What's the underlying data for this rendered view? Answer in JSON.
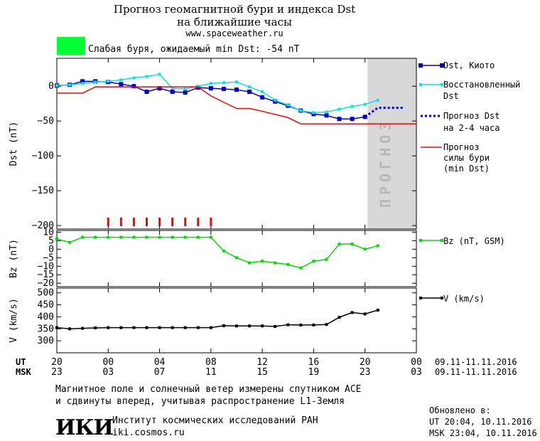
{
  "header": {
    "title_line1": "Прогноз геомагнитной бури и индекса Dst",
    "title_line2": "на ближайшие часы",
    "site": "www.spaceweather.ru",
    "status_color": "#00ff33",
    "status_text": "Слабая буря, ожидаемый min Dst: -54 nT"
  },
  "legend": {
    "dst_kyoto": "Dst, Киото",
    "restored_1": "Восстановленный",
    "restored_2": "Dst",
    "forecast_dst_1": "Прогноз Dst",
    "forecast_dst_2": "на 2-4 часа",
    "forecast_storm_1": "Прогноз",
    "forecast_storm_2": "силы бури",
    "forecast_storm_3": "(min Dst)",
    "bz": "Bz (nT, GSM)",
    "v": "V (km/s)"
  },
  "forecast_band_label": "ПРОГНОЗ",
  "time_axis": {
    "ut_label": "UT",
    "msk_label": "MSK",
    "ut_ticks": [
      "20",
      "00",
      "04",
      "08",
      "12",
      "16",
      "20",
      "00"
    ],
    "msk_ticks": [
      "23",
      "03",
      "07",
      "11",
      "15",
      "19",
      "23",
      "03"
    ],
    "ut_range": "09.11-11.11.2016",
    "msk_range": "09.11-11.11.2016"
  },
  "footer": {
    "note_line1": "Магнитное поле и солнечный ветер измерены спутником ACE",
    "note_line2": "и сдвинуты вперед, учитывая распространение L1-Земля",
    "institute": "Институт космических исследований РАН",
    "institute_url": "iki.cosmos.ru",
    "logo_text": "ИКИ",
    "updated_label": "Обновлено в:",
    "updated_ut": "UT  20:04, 10.11.2016",
    "updated_msk": "MSK 23:04, 10.11.2016"
  },
  "chart_data": [
    {
      "type": "line",
      "panel": "dst",
      "ylabel": "Dst (nT)",
      "ylim": [
        -205,
        40
      ],
      "yticks": [
        0,
        -50,
        -100,
        -150,
        -200
      ],
      "xlim": [
        0,
        28
      ],
      "forecast_start_hour": 24.2,
      "series": [
        {
          "name": "Dst, Киото",
          "color": "#0000cc",
          "x": [
            0,
            1,
            2,
            3,
            4,
            5,
            6,
            7,
            8,
            9,
            10,
            11,
            12,
            13,
            14,
            15,
            16,
            17,
            18,
            19,
            20,
            21,
            22,
            23,
            24
          ],
          "y": [
            1,
            2,
            7,
            7,
            6,
            3,
            0,
            -8,
            -3,
            -8,
            -9,
            -2,
            -3,
            -4,
            -5,
            -8,
            -16,
            -22,
            -28,
            -35,
            -40,
            -42,
            -47,
            -47,
            -44
          ]
        },
        {
          "name": "Восстановленный Dst",
          "color": "#00e5ee",
          "x": [
            0,
            1,
            2,
            3,
            4,
            5,
            6,
            7,
            8,
            9,
            10,
            11,
            12,
            13,
            14,
            15,
            16,
            17,
            18,
            19,
            20,
            21,
            22,
            23,
            24,
            25
          ],
          "y": [
            1,
            2,
            4,
            6,
            7,
            9,
            12,
            14,
            17,
            -3,
            -4,
            0,
            4,
            5,
            6,
            -1,
            -8,
            -20,
            -27,
            -35,
            -38,
            -37,
            -33,
            -29,
            -26,
            -20
          ]
        },
        {
          "name": "Прогноз Dst на 2-4 часа",
          "color": "#0000cc",
          "dashed": true,
          "x": [
            24,
            25,
            26,
            27
          ],
          "y": [
            -44,
            -31,
            -31,
            -31
          ]
        },
        {
          "name": "Прогноз силы бури (min Dst)",
          "color": "#ff0000",
          "x": [
            0,
            2,
            3,
            8,
            11,
            12,
            14,
            15,
            16,
            18,
            19,
            20,
            28
          ],
          "y": [
            -10,
            -10,
            -1,
            -1,
            -1,
            -14,
            -32,
            -32,
            -36,
            -45,
            -54,
            -54,
            -54
          ]
        }
      ],
      "storm_marks_hours": [
        4,
        5,
        6,
        7,
        8,
        9,
        10,
        11,
        12
      ]
    },
    {
      "type": "line",
      "panel": "bz",
      "ylabel": "Bz (nT)",
      "ylim": [
        -22,
        11
      ],
      "yticks": [
        10,
        5,
        0,
        -5,
        -10,
        -15,
        -20
      ],
      "xlim": [
        0,
        28
      ],
      "series": [
        {
          "name": "Bz (nT, GSM)",
          "color": "#00dd00",
          "x": [
            0,
            1,
            2,
            3,
            4,
            5,
            6,
            7,
            8,
            9,
            10,
            11,
            12,
            13,
            14,
            15,
            16,
            17,
            18,
            19,
            20,
            21,
            22,
            23,
            24,
            25
          ],
          "y": [
            6,
            4,
            7,
            7,
            7,
            7,
            7,
            7,
            7,
            7,
            7,
            7,
            7,
            -1,
            -5,
            -8,
            -7,
            -8,
            -9,
            -11,
            -7,
            -6,
            3,
            3,
            0,
            2
          ]
        }
      ]
    },
    {
      "type": "line",
      "panel": "v",
      "ylabel": "V (km/s)",
      "ylim": [
        250,
        520
      ],
      "yticks": [
        500,
        450,
        400,
        350,
        300
      ],
      "xlim": [
        0,
        28
      ],
      "series": [
        {
          "name": "V (km/s)",
          "color": "#000000",
          "x": [
            0,
            1,
            2,
            3,
            4,
            5,
            6,
            7,
            8,
            9,
            10,
            11,
            12,
            13,
            14,
            15,
            16,
            17,
            18,
            19,
            20,
            21,
            22,
            23,
            24,
            25
          ],
          "y": [
            355,
            350,
            352,
            354,
            355,
            355,
            355,
            355,
            355,
            355,
            355,
            355,
            355,
            363,
            362,
            362,
            362,
            360,
            367,
            366,
            366,
            368,
            398,
            418,
            412,
            428
          ]
        }
      ]
    }
  ]
}
